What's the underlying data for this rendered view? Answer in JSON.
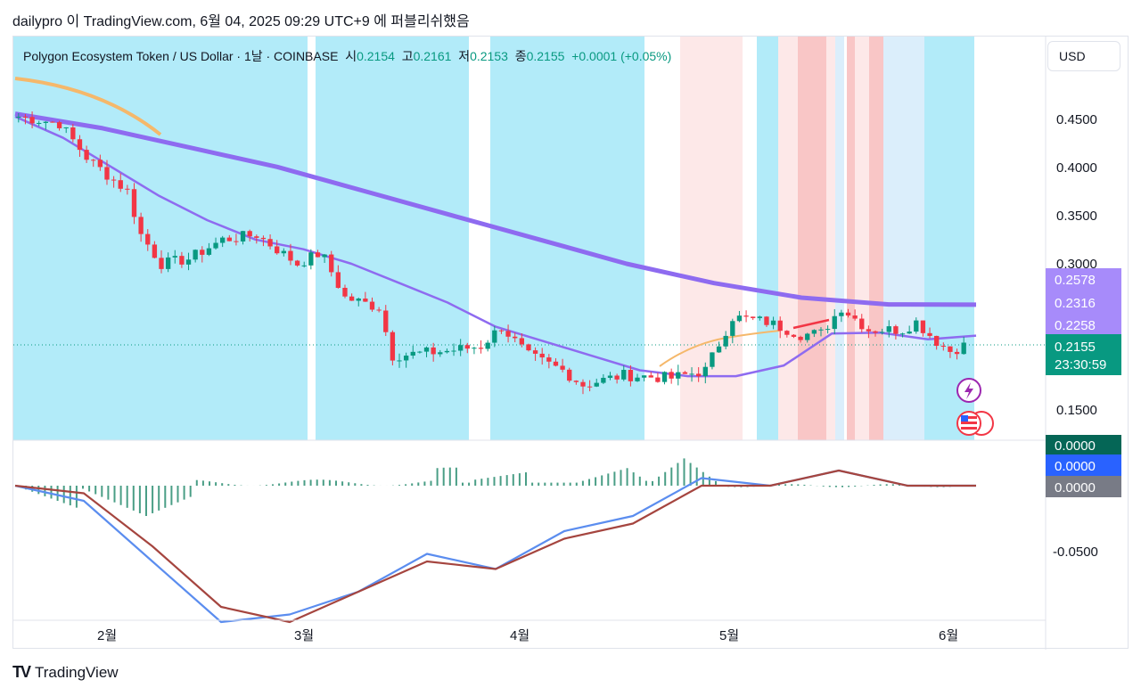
{
  "header": {
    "text": "dailypro 이 TradingView.com, 6월 04, 2025 09:29 UTC+9 에 퍼블리쉬했음"
  },
  "legend": {
    "symbol": "Polygon Ecosystem Token / US Dollar · 1날 · COINBASE",
    "open_label": "시",
    "open": "0.2154",
    "high_label": "고",
    "high": "0.2161",
    "low_label": "저",
    "low": "0.2153",
    "close_label": "종",
    "close": "0.2155",
    "change": "+0.0001 (+0.05%)"
  },
  "currency_button": "USD",
  "price_axis": [
    "0.4500",
    "0.4000",
    "0.3500",
    "0.3000",
    "0.1500"
  ],
  "price_badges": [
    {
      "label": "0.2578",
      "color": "#a78bfa"
    },
    {
      "label": "0.2316",
      "color": "#a78bfa"
    },
    {
      "label": "0.2258",
      "color": "#a78bfa"
    }
  ],
  "current_price": {
    "label": "0.2155",
    "countdown": "23:30:59",
    "color": "#089981"
  },
  "macd_axis": [
    "-0.0500"
  ],
  "macd_badges": [
    {
      "label": "0.0000",
      "color": "#056656"
    },
    {
      "label": "0.0000",
      "color": "#2962ff"
    },
    {
      "label": "0.0000",
      "color": "#787b86"
    }
  ],
  "x_axis": [
    "2월",
    "3월",
    "4월",
    "5월",
    "6월"
  ],
  "footer": {
    "brand": "TradingView"
  },
  "colors": {
    "bull": "#089981",
    "bear": "#f23645",
    "ma_fast": "#8e6bf0",
    "ma_slow": "#8e6bf0",
    "ma_orange": "#f5b86b",
    "macd": "#5b8def",
    "signal": "#a5453f",
    "hist": "#4a9e86"
  },
  "chart_data": [
    {
      "type": "candlestick",
      "title": "Polygon Ecosystem Token / US Dollar · 1날 · COINBASE",
      "x": [
        "2025-01-16",
        "2025-02-01",
        "2025-03-01",
        "2025-04-01",
        "2025-05-01",
        "2025-06-01",
        "2025-06-04"
      ],
      "close_series": [
        {
          "date": "2025-01-16",
          "close": 0.452
        },
        {
          "date": "2025-01-22",
          "close": 0.445
        },
        {
          "date": "2025-01-26",
          "close": 0.41
        },
        {
          "date": "2025-01-29",
          "close": 0.392
        },
        {
          "date": "2025-02-01",
          "close": 0.375
        },
        {
          "date": "2025-02-03",
          "close": 0.33
        },
        {
          "date": "2025-02-06",
          "close": 0.3
        },
        {
          "date": "2025-02-10",
          "close": 0.305
        },
        {
          "date": "2025-02-15",
          "close": 0.325
        },
        {
          "date": "2025-02-20",
          "close": 0.33
        },
        {
          "date": "2025-02-26",
          "close": 0.3
        },
        {
          "date": "2025-03-01",
          "close": 0.31
        },
        {
          "date": "2025-03-02",
          "close": 0.305
        },
        {
          "date": "2025-03-05",
          "close": 0.265
        },
        {
          "date": "2025-03-10",
          "close": 0.255
        },
        {
          "date": "2025-03-12",
          "close": 0.205
        },
        {
          "date": "2025-03-20",
          "close": 0.21
        },
        {
          "date": "2025-03-25",
          "close": 0.215
        },
        {
          "date": "2025-03-28",
          "close": 0.235
        },
        {
          "date": "2025-04-01",
          "close": 0.205
        },
        {
          "date": "2025-04-06",
          "close": 0.19
        },
        {
          "date": "2025-04-09",
          "close": 0.175
        },
        {
          "date": "2025-04-15",
          "close": 0.185
        },
        {
          "date": "2025-04-22",
          "close": 0.182
        },
        {
          "date": "2025-04-27",
          "close": 0.19
        },
        {
          "date": "2025-05-01",
          "close": 0.245
        },
        {
          "date": "2025-05-06",
          "close": 0.24
        },
        {
          "date": "2025-05-11",
          "close": 0.227
        },
        {
          "date": "2025-05-14",
          "close": 0.228
        },
        {
          "date": "2025-05-17",
          "close": 0.255
        },
        {
          "date": "2025-05-21",
          "close": 0.232
        },
        {
          "date": "2025-05-26",
          "close": 0.232
        },
        {
          "date": "2025-05-28",
          "close": 0.24
        },
        {
          "date": "2025-05-31",
          "close": 0.22
        },
        {
          "date": "2025-06-02",
          "close": 0.21
        },
        {
          "date": "2025-06-04",
          "close": 0.2155
        }
      ],
      "moving_averages": [
        {
          "name": "",
          "values": [
            0.452,
            0.43,
            0.4,
            0.37,
            0.345,
            0.325,
            0.315,
            0.3,
            0.28,
            0.26,
            0.235,
            0.22,
            0.205,
            0.19,
            0.184,
            0.184,
            0.195,
            0.228,
            0.229,
            0.222,
            0.2258
          ]
        },
        {
          "name": "",
          "values": [
            0.455,
            0.44,
            0.42,
            0.4,
            0.375,
            0.35,
            0.325,
            0.3,
            0.28,
            0.265,
            0.258,
            0.2578
          ]
        }
      ],
      "macd": {
        "macd_line": [
          0.0,
          -0.01,
          -0.05,
          -0.09,
          -0.085,
          -0.07,
          -0.045,
          -0.055,
          -0.03,
          -0.02,
          0.005,
          0.0,
          0.01,
          0.0,
          0.0
        ],
        "signal_line": [
          0.0,
          -0.005,
          -0.04,
          -0.08,
          -0.09,
          -0.07,
          -0.05,
          -0.055,
          -0.035,
          -0.025,
          0.0,
          0.0,
          0.01,
          0.0,
          0.0
        ]
      },
      "ylim": [
        0.15,
        0.46
      ]
    }
  ]
}
